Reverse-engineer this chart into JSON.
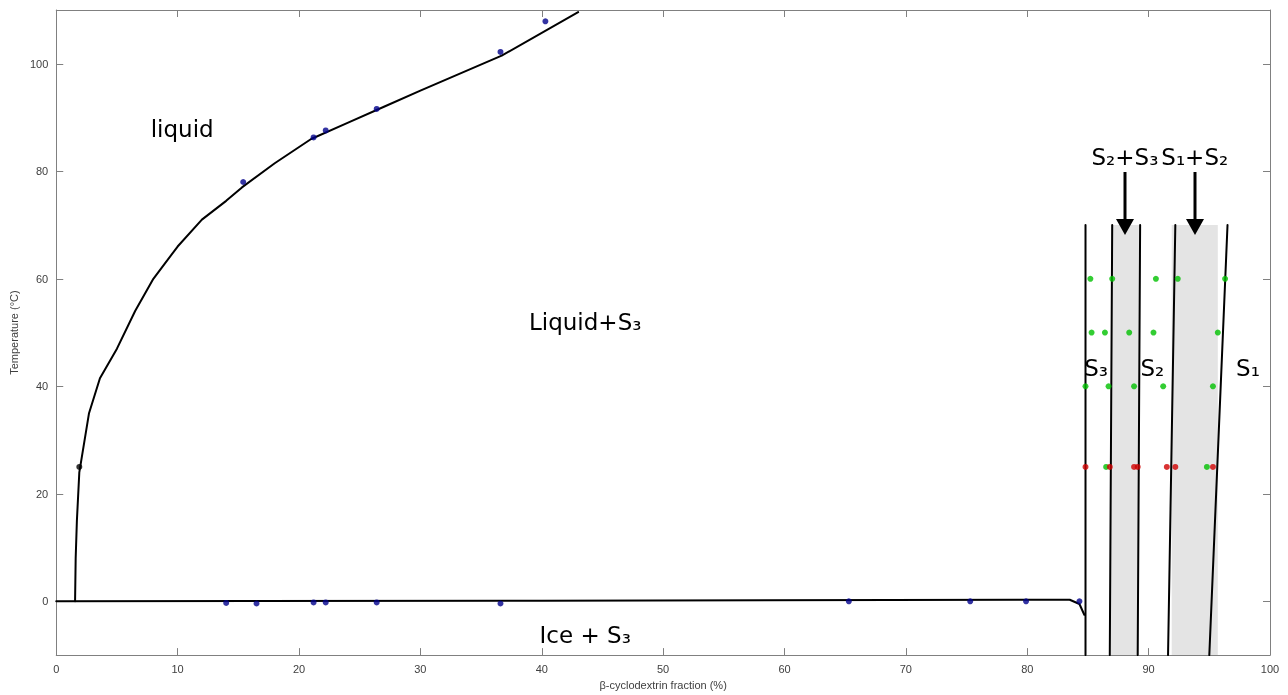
{
  "chart_data": {
    "type": "line",
    "xlabel": "β-cyclodextrin fraction (%)",
    "ylabel": "Temperature (°C)",
    "xlim": [
      0,
      100
    ],
    "xticks": [
      0,
      10,
      20,
      30,
      40,
      50,
      60,
      70,
      80,
      90,
      100
    ],
    "ylim": [
      -10,
      110
    ],
    "yticks": [
      0,
      20,
      40,
      60,
      80,
      100
    ],
    "line_style": "solid",
    "bands": [
      {
        "axis": "x",
        "from": 86.9,
        "to": 89.2,
        "color": "#e4e4e4"
      },
      {
        "axis": "x",
        "from": 91.9,
        "to": 95.7,
        "color": "#e4e4e4"
      }
    ],
    "series": [
      {
        "color": "#000000",
        "x": [
          1.55,
          1.6,
          1.7,
          1.9,
          2.7,
          3.6,
          5,
          6.5,
          8,
          10,
          12,
          14,
          15.3,
          18,
          21,
          24,
          27,
          30,
          36.7,
          43
        ],
        "values": [
          0,
          8,
          15,
          24,
          35,
          41.5,
          47,
          54,
          60,
          66,
          71,
          74.5,
          77,
          81.5,
          86,
          89,
          92,
          95,
          101.5,
          109.6
        ]
      },
      {
        "color": "#000000",
        "x": [
          0,
          40,
          80,
          83.5,
          84.3,
          84.7
        ],
        "values": [
          0,
          0.1,
          0.3,
          0.3,
          -0.5,
          -2.5
        ]
      },
      {
        "color": "#000000",
        "x": [
          84.8,
          84.8
        ],
        "values": [
          -10,
          70
        ]
      },
      {
        "color": "#000000",
        "x": [
          86.8,
          87.0
        ],
        "values": [
          -10,
          70
        ]
      },
      {
        "color": "#000000",
        "x": [
          89.1,
          89.3
        ],
        "values": [
          -10,
          70
        ]
      },
      {
        "color": "#000000",
        "x": [
          91.6,
          92.2
        ],
        "values": [
          -10,
          70
        ]
      },
      {
        "color": "#000000",
        "x": [
          95.0,
          96.5
        ],
        "values": [
          -10,
          70
        ]
      },
      {
        "type": "scatter",
        "color": "#00008b",
        "x": [
          15.4,
          21.2,
          22.2,
          26.4,
          36.6,
          40.3,
          14.0,
          16.5,
          21.2,
          22.2,
          26.4,
          36.6,
          65.3,
          75.3,
          79.9,
          84.3
        ],
        "values": [
          78,
          86.3,
          87.6,
          91.6,
          102.2,
          107.9,
          -0.3,
          -0.4,
          -0.2,
          -0.2,
          -0.2,
          -0.4,
          0,
          0,
          0,
          0
        ]
      },
      {
        "type": "scatter",
        "color": "#00c000",
        "x": [
          85.2,
          87.0,
          90.6,
          92.4,
          96.3,
          85.3,
          86.4,
          88.4,
          90.4,
          95.7,
          84.8,
          86.7,
          88.8,
          91.2,
          95.3,
          86.5,
          94.8
        ],
        "values": [
          60,
          60,
          60,
          60,
          60,
          50,
          50,
          50,
          50,
          50,
          40,
          40,
          40,
          40,
          40,
          25,
          25
        ]
      },
      {
        "type": "scatter",
        "color": "#d00000",
        "x": [
          84.8,
          86.8,
          88.8,
          89.1,
          91.5,
          92.2,
          95.3
        ],
        "values": [
          25,
          25,
          25,
          25,
          25,
          25,
          25
        ]
      },
      {
        "type": "scatter",
        "color": "#000000",
        "x": [
          1.9
        ],
        "values": [
          25
        ]
      }
    ],
    "annotations": [
      "liquid",
      "Liquid+S₃",
      "Ice + S₃",
      "S₃",
      "S₂",
      "S₁",
      {
        "text": "S₂+S₃",
        "x": 88.05,
        "y": 70
      },
      {
        "text": "S₁+S₂",
        "x": 93.8,
        "y": 70
      }
    ]
  }
}
